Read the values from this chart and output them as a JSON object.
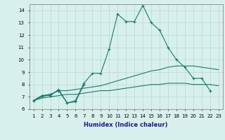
{
  "xlabel": "Humidex (Indice chaleur)",
  "x": [
    1,
    2,
    3,
    4,
    5,
    6,
    7,
    8,
    9,
    10,
    11,
    12,
    13,
    14,
    15,
    16,
    17,
    18,
    19,
    20,
    21,
    22,
    23
  ],
  "line1": [
    6.7,
    7.1,
    7.2,
    7.5,
    6.5,
    6.7,
    8.1,
    8.9,
    8.9,
    10.9,
    13.7,
    13.1,
    13.1,
    14.4,
    13.0,
    12.4,
    11.0,
    10.0,
    9.4,
    8.5,
    8.5,
    7.5,
    null
  ],
  "line2": [
    6.7,
    7.1,
    7.1,
    7.6,
    6.5,
    6.6,
    8.0,
    null,
    null,
    null,
    null,
    null,
    null,
    null,
    null,
    null,
    null,
    null,
    null,
    null,
    null,
    null,
    null
  ],
  "line3": [
    6.7,
    7.0,
    7.2,
    7.5,
    7.5,
    7.6,
    7.7,
    7.8,
    7.9,
    8.1,
    8.3,
    8.5,
    8.7,
    8.9,
    9.1,
    9.2,
    9.4,
    9.5,
    9.5,
    9.5,
    9.4,
    9.3,
    9.2
  ],
  "line4": [
    6.7,
    6.9,
    7.0,
    7.1,
    7.2,
    7.2,
    7.3,
    7.4,
    7.5,
    7.5,
    7.6,
    7.7,
    7.8,
    7.9,
    8.0,
    8.0,
    8.1,
    8.1,
    8.1,
    8.0,
    8.0,
    8.0,
    7.9
  ],
  "color": "#1a7a6e",
  "bg_color": "#d8f0ec",
  "grid_color": "#b8d8d0",
  "ylim": [
    6,
    14.5
  ],
  "yticks": [
    6,
    7,
    8,
    9,
    10,
    11,
    12,
    13,
    14
  ],
  "xlim": [
    0.5,
    23.5
  ],
  "ylabel_fontsize": 6,
  "xlabel_fontsize": 6,
  "tick_fontsize": 5
}
